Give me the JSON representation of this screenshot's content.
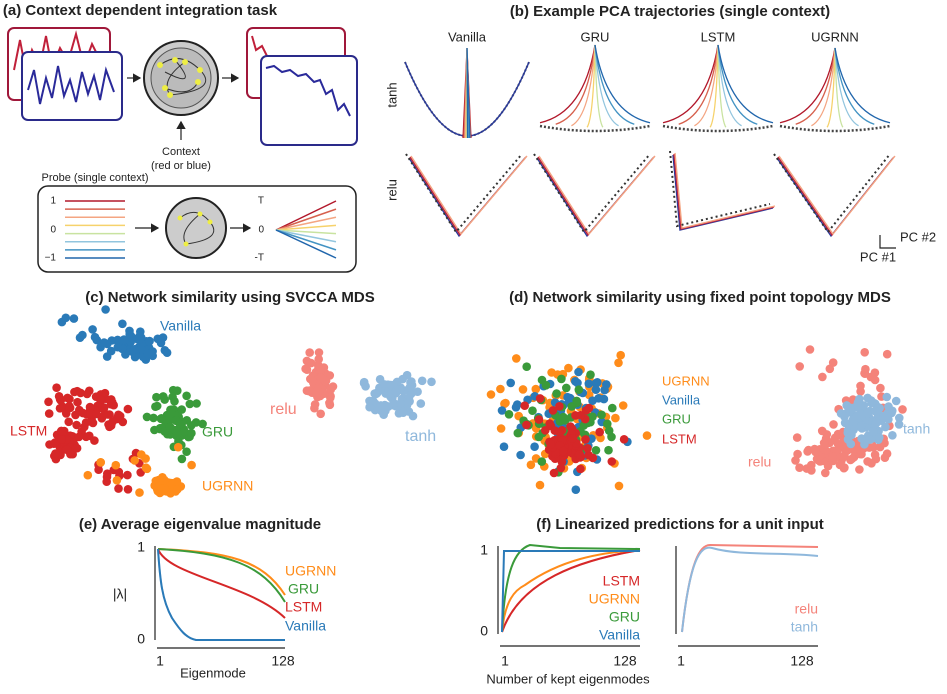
{
  "panel_a": {
    "title": "(a) Context dependent integration task",
    "context": [
      "Context",
      "(red or blue)"
    ],
    "probe_title": "Probe (single context)",
    "probe_input_ticks": [
      "1",
      "0",
      "−1"
    ],
    "probe_output_ticks": [
      "T",
      "0",
      "-T"
    ]
  },
  "panel_b": {
    "title": "(b) Example PCA trajectories (single context)",
    "columns": [
      "Vanilla",
      "GRU",
      "LSTM",
      "UGRNN"
    ],
    "rows": [
      "tanh",
      "relu"
    ],
    "axes": [
      "PC #2",
      "PC #1"
    ]
  },
  "panel_c": {
    "title": "(c) Network similarity using SVCCA MDS",
    "labels": [
      "Vanilla",
      "LSTM",
      "GRU",
      "UGRNN"
    ],
    "nonlinearity_labels": [
      "relu",
      "tanh"
    ]
  },
  "panel_d": {
    "title": "(d) Network similarity using fixed point topology MDS",
    "legend": [
      "UGRNN",
      "Vanilla",
      "GRU",
      "LSTM"
    ],
    "nonlinearity_labels": [
      "relu",
      "tanh"
    ]
  },
  "panel_e": {
    "title": "(e) Average eigenvalue magnitude",
    "ylabel": "|λ|",
    "xlabel": "Eigenmode",
    "yticks": [
      "1",
      "0"
    ],
    "xticks": [
      "1",
      "128"
    ],
    "legend": [
      "UGRNN",
      "GRU",
      "LSTM",
      "Vanilla"
    ]
  },
  "panel_f": {
    "title": "(f) Linearized predictions for a unit input",
    "xlabel": "Number of kept eigenmodes",
    "yticks": [
      "1",
      "0"
    ],
    "xticks": [
      "1",
      "128",
      "1",
      "128"
    ],
    "legend": [
      "LSTM",
      "UGRNN",
      "GRU",
      "Vanilla"
    ],
    "nonlinearity_legend": [
      "relu",
      "tanh"
    ]
  }
}
